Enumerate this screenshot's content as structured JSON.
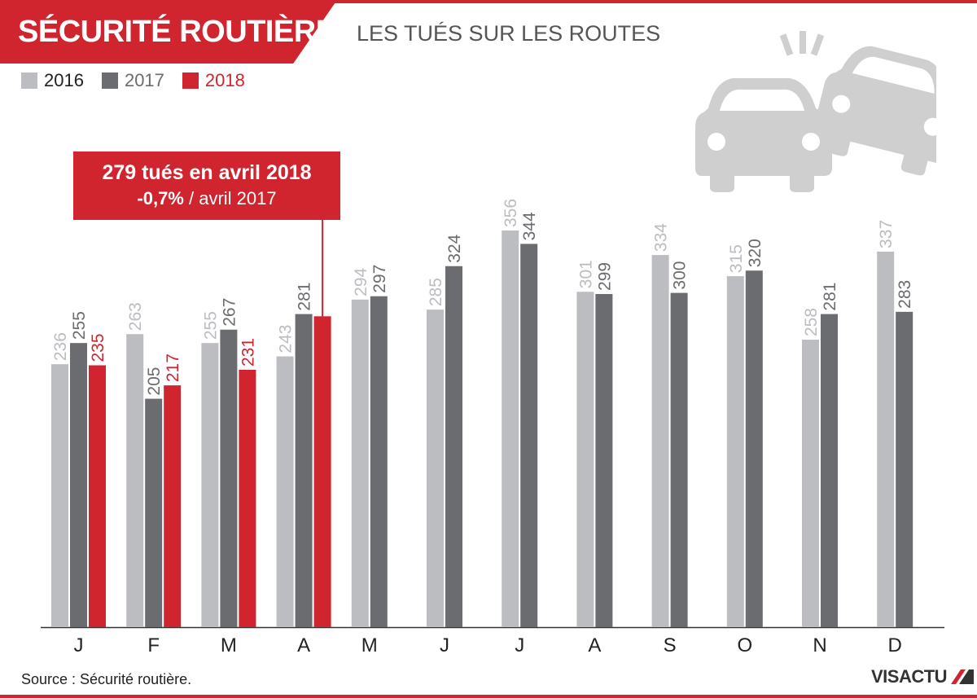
{
  "header": {
    "banner_title": "SÉCURITÉ ROUTIÈRE",
    "subtitle": "LES TUÉS SUR LES ROUTES"
  },
  "colors": {
    "accent": "#d0242f",
    "series_2016": "#bcbdc1",
    "series_2017": "#6b6c6f",
    "series_2018": "#d0242f",
    "icon": "#cfcfcf"
  },
  "callout": {
    "line1": "279 tués en avril 2018",
    "line2_bold": "-0,7%",
    "line2_rest": " / avril 2017"
  },
  "source": "Source : Sécurité routière.",
  "logo": {
    "text": "VISACTU",
    "icon": "visactu-logo-icon"
  },
  "decor_icon": "car-crash-icon",
  "chart_data": {
    "type": "bar",
    "title": "LES TUÉS SUR LES ROUTES",
    "xlabel": "",
    "ylabel": "",
    "categories": [
      "J",
      "F",
      "M",
      "A",
      "M",
      "J",
      "J",
      "A",
      "S",
      "O",
      "N",
      "D"
    ],
    "legend_position": "top-left",
    "grid": false,
    "ylim": [
      0,
      400
    ],
    "series": [
      {
        "name": "2016",
        "color": "#bcbdc1",
        "values": [
          236,
          263,
          255,
          243,
          294,
          285,
          356,
          301,
          334,
          315,
          258,
          337
        ],
        "labels_shown": true
      },
      {
        "name": "2017",
        "color": "#6b6c6f",
        "values": [
          255,
          205,
          267,
          281,
          297,
          324,
          344,
          299,
          300,
          320,
          281,
          283
        ],
        "labels_shown": true
      },
      {
        "name": "2018",
        "color": "#d0242f",
        "values": [
          235,
          217,
          231,
          279,
          null,
          null,
          null,
          null,
          null,
          null,
          null,
          null
        ],
        "labels_shown": [
          true,
          true,
          true,
          false
        ]
      }
    ]
  }
}
